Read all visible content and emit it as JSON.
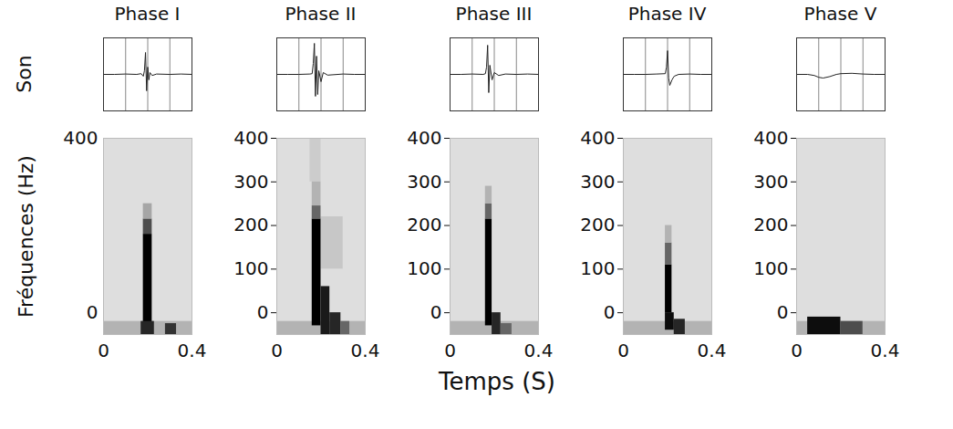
{
  "chart_data": {
    "type": "spectrogram",
    "waveform_label": "Son",
    "xlabel": "Temps (S)",
    "ylabel": "Fréquences (Hz)",
    "xlim": [
      0,
      0.4
    ],
    "xticks": [
      0,
      0.4
    ],
    "ylim": [
      -50,
      400
    ],
    "yticks": [
      0,
      400
    ],
    "color_range": [
      0,
      1
    ],
    "waveform_xlim": [
      0,
      0.4
    ],
    "waveform_xticks": [
      0,
      0.1,
      0.2,
      0.3,
      0.4
    ],
    "waveform_ylim": [
      -1,
      1
    ],
    "grid": true,
    "panels": [
      {
        "title": "Phase I",
        "waveform": {
          "x": [
            0,
            0.05,
            0.1,
            0.15,
            0.17,
            0.18,
            0.185,
            0.19,
            0.195,
            0.2,
            0.205,
            0.21,
            0.22,
            0.24,
            0.3,
            0.35,
            0.4
          ],
          "values": [
            0,
            0,
            0.01,
            0,
            0.02,
            -0.05,
            0.1,
            0.6,
            -0.45,
            0.2,
            -0.15,
            0.05,
            -0.03,
            0.01,
            0,
            0.01,
            0
          ]
        },
        "cells": [
          [
            0,
            0.4,
            -50,
            400,
            0.13
          ],
          [
            0,
            0.4,
            -50,
            -20,
            0.3
          ],
          [
            0.18,
            0.22,
            -30,
            180,
            1
          ],
          [
            0.18,
            0.22,
            180,
            215,
            0.7
          ],
          [
            0.18,
            0.22,
            215,
            250,
            0.35
          ],
          [
            0.17,
            0.23,
            -50,
            -20,
            0.85
          ],
          [
            0.28,
            0.33,
            -50,
            -25,
            0.8
          ]
        ]
      },
      {
        "title": "Phase II",
        "waveform": {
          "x": [
            0,
            0.05,
            0.1,
            0.15,
            0.16,
            0.165,
            0.17,
            0.175,
            0.18,
            0.185,
            0.19,
            0.2,
            0.21,
            0.23,
            0.3,
            0.35,
            0.4
          ],
          "values": [
            0,
            0,
            0,
            0.01,
            0.02,
            0.3,
            0.85,
            -0.6,
            0.5,
            -0.55,
            0.1,
            -0.2,
            0.05,
            -0.02,
            0.01,
            0,
            0
          ]
        },
        "cells": [
          [
            0,
            0.4,
            -50,
            400,
            0.13
          ],
          [
            0,
            0.4,
            -50,
            -20,
            0.3
          ],
          [
            0.2,
            0.3,
            100,
            220,
            0.22
          ],
          [
            0.15,
            0.2,
            300,
            400,
            0.2
          ],
          [
            0.16,
            0.2,
            -30,
            215,
            1
          ],
          [
            0.16,
            0.2,
            215,
            245,
            0.6
          ],
          [
            0.16,
            0.2,
            245,
            300,
            0.3
          ],
          [
            0.2,
            0.24,
            -50,
            60,
            0.9
          ],
          [
            0.24,
            0.29,
            -50,
            0,
            0.85
          ],
          [
            0.29,
            0.33,
            -50,
            -20,
            0.6
          ]
        ]
      },
      {
        "title": "Phase III",
        "waveform": {
          "x": [
            0,
            0.05,
            0.1,
            0.15,
            0.16,
            0.165,
            0.17,
            0.175,
            0.18,
            0.19,
            0.2,
            0.22,
            0.25,
            0.3,
            0.35,
            0.4
          ],
          "values": [
            0,
            0,
            0.01,
            0,
            0.02,
            0.2,
            0.8,
            -0.5,
            0.25,
            -0.15,
            0.05,
            -0.03,
            0.01,
            0,
            0.01,
            0
          ]
        },
        "cells": [
          [
            0,
            0.4,
            -50,
            400,
            0.13
          ],
          [
            0,
            0.4,
            -50,
            -20,
            0.3
          ],
          [
            0.16,
            0.19,
            -30,
            215,
            1
          ],
          [
            0.16,
            0.19,
            215,
            250,
            0.6
          ],
          [
            0.16,
            0.19,
            250,
            290,
            0.3
          ],
          [
            0.19,
            0.23,
            -50,
            0,
            0.85
          ],
          [
            0.23,
            0.28,
            -50,
            -25,
            0.6
          ]
        ]
      },
      {
        "title": "Phase IV",
        "waveform": {
          "x": [
            0,
            0.05,
            0.1,
            0.15,
            0.19,
            0.195,
            0.2,
            0.205,
            0.21,
            0.22,
            0.23,
            0.25,
            0.3,
            0.35,
            0.4
          ],
          "values": [
            0,
            0,
            0,
            0.01,
            0.02,
            0.2,
            0.65,
            -0.1,
            -0.3,
            -0.15,
            -0.05,
            0,
            0.01,
            0,
            0
          ]
        },
        "cells": [
          [
            0,
            0.4,
            -50,
            400,
            0.13
          ],
          [
            0,
            0.4,
            -50,
            -20,
            0.3
          ],
          [
            0.19,
            0.22,
            0,
            110,
            1
          ],
          [
            0.19,
            0.22,
            110,
            160,
            0.6
          ],
          [
            0.19,
            0.22,
            160,
            200,
            0.3
          ],
          [
            0.19,
            0.23,
            -40,
            0,
            0.95
          ],
          [
            0.23,
            0.28,
            -50,
            -15,
            0.85
          ]
        ]
      },
      {
        "title": "Phase V",
        "waveform": {
          "x": [
            0,
            0.05,
            0.08,
            0.1,
            0.12,
            0.15,
            0.18,
            0.2,
            0.25,
            0.3,
            0.35,
            0.4
          ],
          "values": [
            0,
            0,
            -0.03,
            -0.08,
            -0.1,
            -0.06,
            0,
            0.02,
            0.03,
            0.01,
            0,
            0
          ]
        },
        "cells": [
          [
            0,
            0.4,
            -50,
            400,
            0.13
          ],
          [
            0,
            0.4,
            -50,
            -20,
            0.3
          ],
          [
            0.05,
            0.2,
            -50,
            -10,
            0.95
          ],
          [
            0.2,
            0.3,
            -50,
            -20,
            0.7
          ]
        ]
      }
    ]
  }
}
